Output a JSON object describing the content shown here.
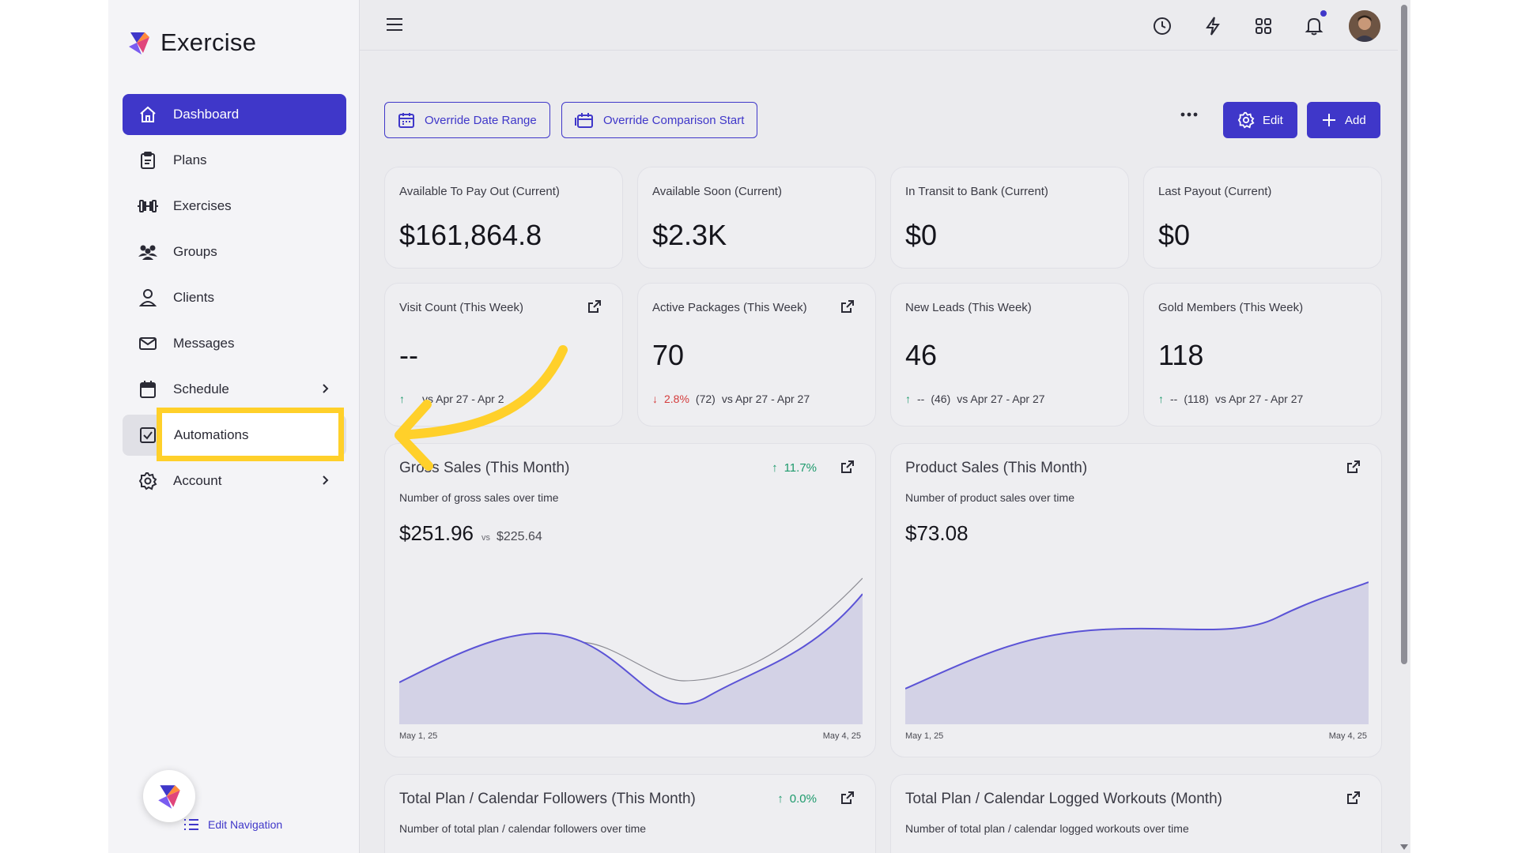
{
  "app": {
    "name": "Exercise"
  },
  "sidebar": {
    "items": [
      {
        "label": "Dashboard",
        "icon": "home-icon"
      },
      {
        "label": "Plans",
        "icon": "clipboard-icon"
      },
      {
        "label": "Exercises",
        "icon": "dumbbell-icon"
      },
      {
        "label": "Groups",
        "icon": "users-icon"
      },
      {
        "label": "Clients",
        "icon": "user-icon"
      },
      {
        "label": "Messages",
        "icon": "mail-icon"
      },
      {
        "label": "Schedule",
        "icon": "calendar-icon"
      },
      {
        "label": "Automations",
        "icon": "checkbox-icon"
      },
      {
        "label": "Account",
        "icon": "gear-icon"
      }
    ],
    "edit_navigation": "Edit Navigation"
  },
  "toolbar": {
    "override_date_range": "Override Date Range",
    "override_comparison_start": "Override Comparison Start",
    "edit": "Edit",
    "add": "Add"
  },
  "cards": {
    "available_payout": {
      "title": "Available To Pay Out (Current)",
      "value": "$161,864.8"
    },
    "available_soon": {
      "title": "Available Soon (Current)",
      "value": "$2.3K"
    },
    "in_transit": {
      "title": "In Transit to Bank (Current)",
      "value": "$0"
    },
    "last_payout": {
      "title": "Last Payout (Current)",
      "value": "$0"
    },
    "visit_count": {
      "title": "Visit Count (This Week)",
      "value": "--",
      "cmp_text": "vs Apr 27 - Apr 2"
    },
    "active_packages": {
      "title": "Active Packages (This Week)",
      "value": "70",
      "pct": "2.8%",
      "prev": "(72)",
      "vs": "vs Apr 27 - Apr 27"
    },
    "new_leads": {
      "title": "New Leads (This Week)",
      "value": "46",
      "pct": "--",
      "prev": "(46)",
      "vs": "vs Apr 27 - Apr 27"
    },
    "gold_members": {
      "title": "Gold Members (This Week)",
      "value": "118",
      "pct": "--",
      "prev": "(118)",
      "vs": "vs Apr 27 - Apr 27"
    },
    "gross_sales": {
      "title": "Gross Sales (This Month)",
      "subtitle": "Number of gross sales over time",
      "value": "$251.96",
      "vs": "vs",
      "prev": "$225.64",
      "pct": "11.7%",
      "x_start": "May 1, 25",
      "x_end": "May 4, 25"
    },
    "product_sales": {
      "title": "Product Sales (This Month)",
      "subtitle": "Number of product sales over time",
      "value": "$73.08",
      "x_start": "May 1, 25",
      "x_end": "May 4, 25"
    },
    "plan_followers": {
      "title": "Total Plan / Calendar Followers (This Month)",
      "subtitle": "Number of total plan / calendar followers over time",
      "pct": "0.0%"
    },
    "plan_workouts": {
      "title": "Total Plan / Calendar Logged Workouts (Month)",
      "subtitle": "Number of total plan / calendar logged workouts over time"
    }
  },
  "colors": {
    "accent": "#3f37c9",
    "highlight": "#ffd02a",
    "up": "#1d9a6c",
    "down": "#d43b3b"
  }
}
